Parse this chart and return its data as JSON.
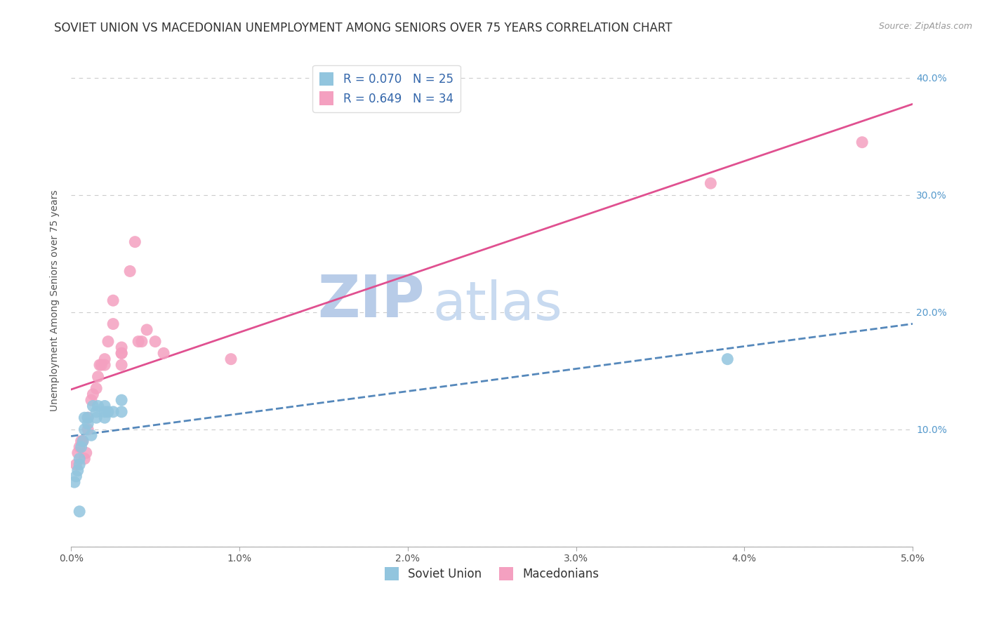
{
  "title": "SOVIET UNION VS MACEDONIAN UNEMPLOYMENT AMONG SENIORS OVER 75 YEARS CORRELATION CHART",
  "source": "Source: ZipAtlas.com",
  "ylabel": "Unemployment Among Seniors over 75 years",
  "xlim": [
    0.0,
    0.05
  ],
  "ylim": [
    0.0,
    0.42
  ],
  "xticks": [
    0.0,
    0.01,
    0.02,
    0.03,
    0.04,
    0.05
  ],
  "yticks": [
    0.0,
    0.1,
    0.2,
    0.3,
    0.4
  ],
  "xtick_labels": [
    "0.0%",
    "1.0%",
    "2.0%",
    "3.0%",
    "4.0%",
    "5.0%"
  ],
  "ytick_labels_right": [
    "",
    "10.0%",
    "20.0%",
    "30.0%",
    "40.0%"
  ],
  "soviet_R": 0.07,
  "soviet_N": 25,
  "macedonian_R": 0.649,
  "macedonian_N": 34,
  "soviet_color": "#92c5de",
  "macedonian_color": "#f4a0c0",
  "soviet_line_color": "#5588bb",
  "macedonian_line_color": "#e05090",
  "background_color": "#ffffff",
  "watermark_zip": "ZIP",
  "watermark_atlas": "atlas",
  "title_fontsize": 12,
  "axis_label_fontsize": 10,
  "tick_fontsize": 10,
  "legend_fontsize": 12,
  "watermark_fontsize_zip": 60,
  "watermark_fontsize_atlas": 55,
  "watermark_zip_color": "#b8cce8",
  "watermark_atlas_color": "#c8daf0",
  "source_fontsize": 9,
  "soviet_points_x": [
    0.0002,
    0.0003,
    0.0004,
    0.0005,
    0.0005,
    0.0006,
    0.0007,
    0.0008,
    0.0008,
    0.001,
    0.001,
    0.0012,
    0.0013,
    0.0015,
    0.0015,
    0.0016,
    0.002,
    0.002,
    0.002,
    0.0022,
    0.0025,
    0.003,
    0.003,
    0.039,
    0.0005
  ],
  "soviet_points_y": [
    0.055,
    0.06,
    0.065,
    0.07,
    0.075,
    0.085,
    0.09,
    0.1,
    0.11,
    0.105,
    0.11,
    0.095,
    0.12,
    0.11,
    0.115,
    0.12,
    0.115,
    0.12,
    0.11,
    0.115,
    0.115,
    0.115,
    0.125,
    0.16,
    0.03
  ],
  "macedonian_points_x": [
    0.0003,
    0.0004,
    0.0005,
    0.0006,
    0.0007,
    0.0008,
    0.0009,
    0.001,
    0.001,
    0.0012,
    0.0013,
    0.0015,
    0.0016,
    0.0017,
    0.0018,
    0.002,
    0.002,
    0.0022,
    0.0025,
    0.0025,
    0.003,
    0.003,
    0.003,
    0.003,
    0.0035,
    0.0038,
    0.004,
    0.0042,
    0.0045,
    0.005,
    0.0055,
    0.0095,
    0.038,
    0.047
  ],
  "macedonian_points_y": [
    0.07,
    0.08,
    0.085,
    0.09,
    0.09,
    0.075,
    0.08,
    0.1,
    0.11,
    0.125,
    0.13,
    0.135,
    0.145,
    0.155,
    0.155,
    0.155,
    0.16,
    0.175,
    0.19,
    0.21,
    0.165,
    0.165,
    0.155,
    0.17,
    0.235,
    0.26,
    0.175,
    0.175,
    0.185,
    0.175,
    0.165,
    0.16,
    0.31,
    0.345
  ]
}
